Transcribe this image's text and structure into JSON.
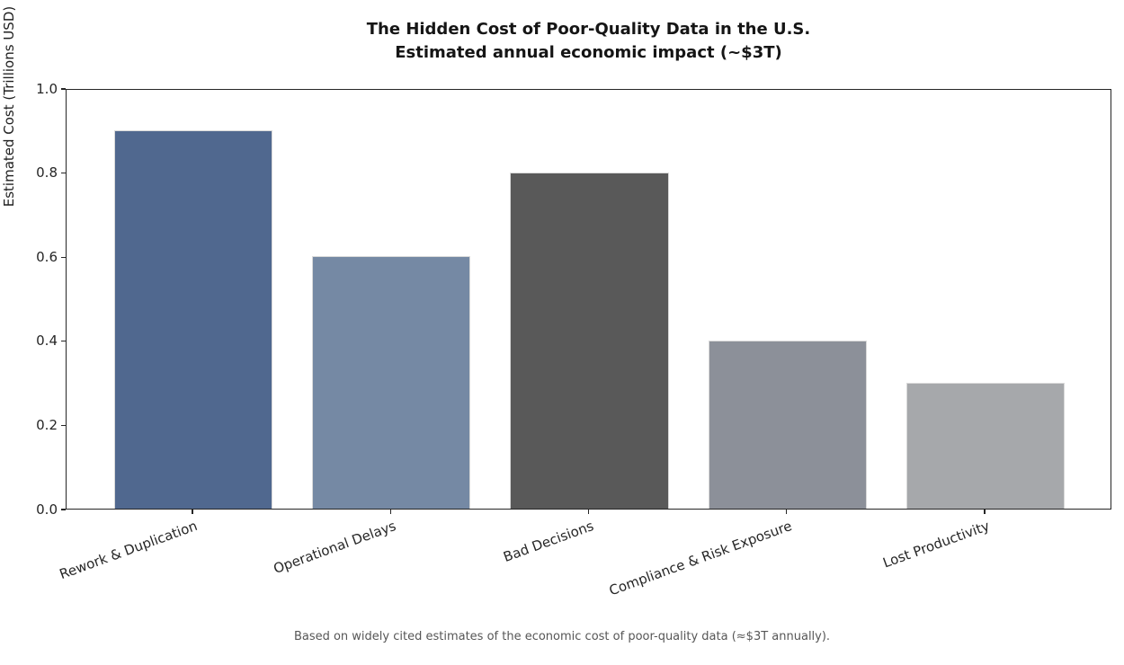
{
  "chart_data": {
    "type": "bar",
    "title": "The Hidden Cost of Poor-Quality Data in the U.S.\nEstimated annual economic impact (~$3T)",
    "title_lines": [
      "The Hidden Cost of Poor-Quality Data in the U.S.",
      "Estimated annual economic impact (~$3T)"
    ],
    "categories": [
      "Rework & Duplication",
      "Operational Delays",
      "Bad Decisions",
      "Compliance & Risk Exposure",
      "Lost Productivity"
    ],
    "values": [
      0.9,
      0.6,
      0.8,
      0.4,
      0.3
    ],
    "bar_colors": [
      "#50688F",
      "#7589A4",
      "#595959",
      "#8C9099",
      "#A6A8AB"
    ],
    "xlabel": "",
    "ylabel": "Estimated Cost (Trillions USD)",
    "ylim": [
      0,
      1.0
    ],
    "yticks": [
      0.0,
      0.2,
      0.4,
      0.6,
      0.8,
      1.0
    ],
    "ytick_labels": [
      "0.0",
      "0.2",
      "0.4",
      "0.6",
      "0.8",
      "1.0"
    ],
    "xtick_label_rotation_deg": 20,
    "grid": false,
    "legend": null,
    "annotation": "Based on widely cited estimates of the economic cost of poor-quality data (≈$3T annually)."
  }
}
